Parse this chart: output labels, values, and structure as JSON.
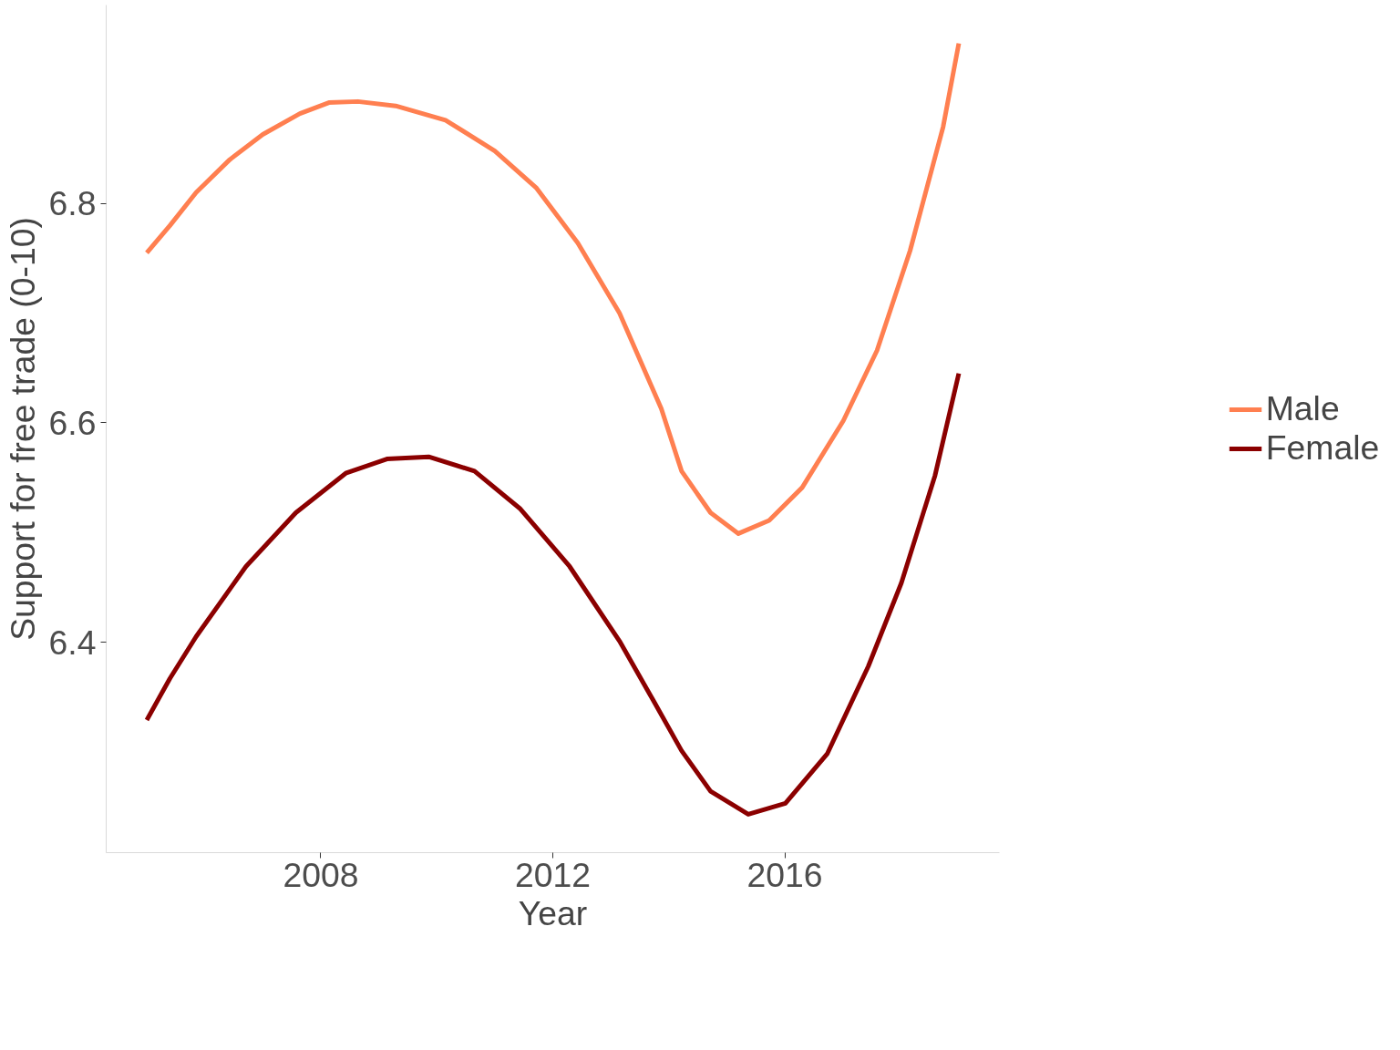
{
  "chart_data": {
    "type": "line",
    "xlabel": "Year",
    "ylabel": "Support for free trade (0-10)",
    "xlim": [
      2004.3,
      2019.7
    ],
    "ylim": [
      6.208,
      6.981
    ],
    "xticks": [
      2008,
      2012,
      2016
    ],
    "yticks": [
      6.4,
      6.6,
      6.8
    ],
    "grid": false,
    "legend": "right",
    "marker": "none",
    "line_style": "solid",
    "series": [
      {
        "name": "Male",
        "color": "#ff7f50",
        "x": [
          2005.0,
          2005.4,
          2005.85,
          2006.43,
          2007.0,
          2007.64,
          2008.14,
          2008.64,
          2009.29,
          2010.15,
          2011.0,
          2011.72,
          2012.43,
          2013.15,
          2013.87,
          2014.22,
          2014.72,
          2015.2,
          2015.73,
          2016.3,
          2017.01,
          2017.59,
          2018.16,
          2018.73,
          2019.0
        ],
        "values": [
          6.755,
          6.78,
          6.81,
          6.84,
          6.863,
          6.882,
          6.892,
          6.893,
          6.889,
          6.876,
          6.848,
          6.814,
          6.764,
          6.7,
          6.613,
          6.556,
          6.518,
          6.499,
          6.511,
          6.541,
          6.602,
          6.666,
          6.757,
          6.87,
          6.946
        ]
      },
      {
        "name": "Female",
        "color": "#8b0000",
        "x": [
          2005.0,
          2005.4,
          2005.85,
          2006.71,
          2007.57,
          2008.43,
          2009.14,
          2009.86,
          2010.65,
          2011.43,
          2012.29,
          2013.15,
          2013.72,
          2014.22,
          2014.72,
          2015.37,
          2016.01,
          2016.73,
          2017.44,
          2018.01,
          2018.59,
          2019.0
        ],
        "values": [
          6.329,
          6.367,
          6.405,
          6.469,
          6.518,
          6.554,
          6.567,
          6.569,
          6.556,
          6.522,
          6.469,
          6.401,
          6.348,
          6.301,
          6.264,
          6.243,
          6.253,
          6.298,
          6.378,
          6.454,
          6.552,
          6.645
        ]
      }
    ]
  }
}
